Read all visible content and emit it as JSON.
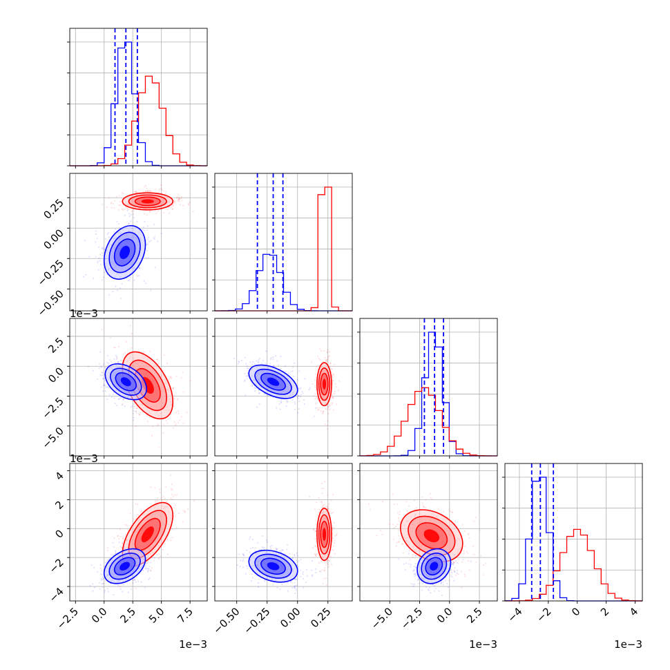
{
  "chart_data": {
    "type": "corner",
    "n_params": 4,
    "colors": {
      "red": "#ff0000",
      "blue": "#0000ff",
      "grid": "#b0b0b0"
    },
    "grid": true,
    "params": [
      {
        "range": [
          -3.0,
          9.0
        ],
        "ticks": [
          -2.5,
          0.0,
          2.5,
          5.0,
          7.5
        ],
        "tick_labels": [
          "−2.5",
          "0.0",
          "2.5",
          "5.0",
          "7.5"
        ],
        "offset_label": "1e−3",
        "red_dist": {
          "mean": 3.8,
          "sd": 1.15,
          "skew": 0.25
        },
        "blue_dist": {
          "mean": 1.85,
          "sd": 0.78,
          "skew": 0
        },
        "blue_quantiles": [
          0.95,
          1.9,
          2.9
        ]
      },
      {
        "range": [
          -0.68,
          0.45
        ],
        "ticks": [
          -0.5,
          -0.25,
          0.0,
          0.25
        ],
        "tick_labels": [
          "−0.50",
          "−0.25",
          "0.00",
          "0.25"
        ],
        "offset_label": "",
        "red_dist": {
          "mean": 0.225,
          "sd": 0.03,
          "skew": 0
        },
        "blue_dist": {
          "mean": -0.2,
          "sd": 0.1,
          "skew": -0.4
        },
        "blue_quantiles": [
          -0.33,
          -0.2,
          -0.12
        ]
      },
      {
        "range": [
          -7.5,
          4.0
        ],
        "ticks": [
          -5.0,
          -2.5,
          0.0,
          2.5
        ],
        "tick_labels": [
          "−5.0",
          "−2.5",
          "0.0",
          "2.5"
        ],
        "offset_label": "1e−3",
        "red_dist": {
          "mean": -1.6,
          "sd": 1.5,
          "skew": -0.5
        },
        "blue_dist": {
          "mean": -1.3,
          "sd": 0.75,
          "skew": 0
        },
        "blue_quantiles": [
          -2.1,
          -1.25,
          -0.5
        ]
      },
      {
        "range": [
          -5.0,
          4.5
        ],
        "ticks": [
          -4,
          -2,
          0,
          2,
          4
        ],
        "tick_labels": [
          "−4",
          "−2",
          "0",
          "2",
          "4"
        ],
        "offset_label": "1e−3",
        "red_dist": {
          "mean": -0.3,
          "sd": 1.15,
          "skew": 0.35
        },
        "blue_dist": {
          "mean": -2.6,
          "sd": 0.6,
          "skew": 0
        },
        "blue_quantiles": [
          -3.15,
          -2.55,
          -1.65
        ]
      }
    ],
    "pairs": [
      {
        "x": 0,
        "y": 1,
        "red_center": [
          3.8,
          0.22
        ],
        "red_sd": [
          1.1,
          0.035
        ],
        "red_rho": 0.0,
        "blue_center": [
          1.8,
          -0.2
        ],
        "blue_sd": [
          0.9,
          0.11
        ],
        "blue_rho": 0.3
      },
      {
        "x": 0,
        "y": 2,
        "red_center": [
          3.8,
          -1.6
        ],
        "red_sd": [
          1.1,
          1.4
        ],
        "red_rho": -0.5,
        "blue_center": [
          1.9,
          -1.3
        ],
        "blue_sd": [
          0.9,
          0.75
        ],
        "blue_rho": -0.4
      },
      {
        "x": 1,
        "y": 2,
        "red_center": [
          0.22,
          -1.5
        ],
        "red_sd": [
          0.03,
          0.9
        ],
        "red_rho": 0.0,
        "blue_center": [
          -0.2,
          -1.3
        ],
        "blue_sd": [
          0.1,
          0.7
        ],
        "blue_rho": -0.5
      },
      {
        "x": 0,
        "y": 3,
        "red_center": [
          3.8,
          -0.4
        ],
        "red_sd": [
          1.1,
          1.1
        ],
        "red_rho": 0.6,
        "blue_center": [
          1.8,
          -2.6
        ],
        "blue_sd": [
          0.9,
          0.6
        ],
        "blue_rho": 0.4
      },
      {
        "x": 1,
        "y": 3,
        "red_center": [
          0.22,
          -0.4
        ],
        "red_sd": [
          0.03,
          0.9
        ],
        "red_rho": 0.0,
        "blue_center": [
          -0.2,
          -2.6
        ],
        "blue_sd": [
          0.1,
          0.55
        ],
        "blue_rho": -0.3
      },
      {
        "x": 2,
        "y": 3,
        "red_center": [
          -1.5,
          -0.5
        ],
        "red_sd": [
          1.3,
          0.9
        ],
        "red_rho": -0.3,
        "blue_center": [
          -1.3,
          -2.6
        ],
        "blue_sd": [
          0.7,
          0.6
        ],
        "blue_rho": 0.2
      }
    ]
  }
}
